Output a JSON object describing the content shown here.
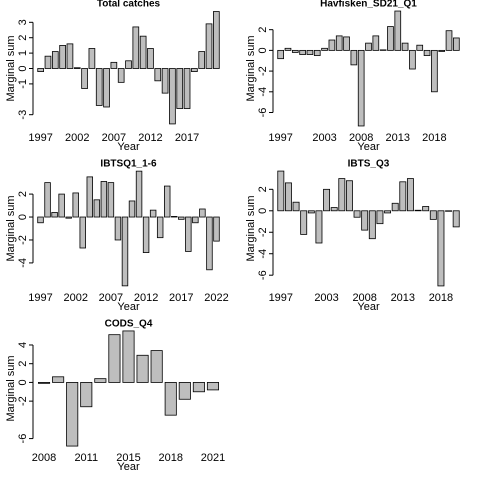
{
  "chart_data": [
    {
      "type": "bar",
      "title": "Total catches",
      "x_label": "Year",
      "y_label": "Marginal sum",
      "color": "#bebebe",
      "categories": [
        "1997",
        null,
        null,
        null,
        null,
        "2002",
        null,
        null,
        null,
        null,
        "2007",
        null,
        null,
        null,
        null,
        "2012",
        null,
        null,
        null,
        null,
        "2017",
        null,
        null,
        null,
        null
      ],
      "values": [
        -0.2,
        0.8,
        1.1,
        1.5,
        1.6,
        0.05,
        -1.3,
        1.3,
        -2.4,
        -2.5,
        0.4,
        -0.9,
        0.5,
        2.7,
        2.1,
        1.3,
        -0.8,
        -1.6,
        -3.6,
        -2.6,
        -2.6,
        -0.2,
        1.1,
        2.9,
        3.7
      ],
      "ylim": [
        -3.8,
        3.8
      ],
      "yticks": [
        -3,
        -1,
        0,
        1,
        2,
        3
      ]
    },
    {
      "type": "bar",
      "title": "Havfisken_SD21_Q1",
      "x_label": "Year",
      "y_label": "Marginal sum",
      "color": "#bebebe",
      "categories": [
        "1997",
        null,
        null,
        null,
        null,
        null,
        "2003",
        null,
        null,
        null,
        null,
        "2008",
        null,
        null,
        null,
        null,
        "2013",
        null,
        null,
        null,
        null,
        "2018",
        null,
        null,
        null
      ],
      "values": [
        -0.8,
        0.2,
        -0.2,
        -0.4,
        -0.4,
        -0.5,
        0.2,
        1.0,
        1.4,
        1.3,
        -1.4,
        -7.3,
        0.7,
        1.4,
        0.05,
        2.3,
        3.8,
        0.7,
        -1.8,
        0.5,
        -0.5,
        -4.0,
        -0.1,
        1.9,
        1.2
      ],
      "ylim": [
        -7.4,
        3.9
      ],
      "yticks": [
        -6,
        -4,
        -2,
        0,
        2
      ]
    },
    {
      "type": "bar",
      "title": "IBTSQ1_1-6",
      "x_label": "Year",
      "y_label": "Marginal sum",
      "color": "#bebebe",
      "categories": [
        "1997",
        null,
        null,
        null,
        null,
        "2002",
        null,
        null,
        null,
        null,
        "2007",
        null,
        null,
        null,
        null,
        "2012",
        null,
        null,
        null,
        null,
        "2017",
        null,
        null,
        null,
        null,
        "2022"
      ],
      "values": [
        -0.5,
        3.0,
        0.4,
        2.0,
        -0.1,
        2.1,
        -2.7,
        3.5,
        1.5,
        3.1,
        3.0,
        -2.0,
        -6.0,
        1.4,
        4.0,
        -3.1,
        0.6,
        -1.8,
        2.7,
        0.05,
        -0.2,
        -3.0,
        -0.5,
        0.7,
        -4.6,
        -2.1
      ],
      "ylim": [
        -6.1,
        4.1
      ],
      "yticks": [
        -4,
        -2,
        0,
        2
      ]
    },
    {
      "type": "bar",
      "title": "IBTS_Q3",
      "x_label": "Year",
      "y_label": "Marginal sum",
      "color": "#bebebe",
      "categories": [
        "1997",
        null,
        null,
        null,
        null,
        null,
        "2003",
        null,
        null,
        null,
        null,
        "2008",
        null,
        null,
        null,
        null,
        "2013",
        null,
        null,
        null,
        null,
        "2018",
        null,
        null
      ],
      "values": [
        3.7,
        2.6,
        0.8,
        -2.2,
        -0.2,
        -3.0,
        2.0,
        0.3,
        3.0,
        2.8,
        -0.6,
        -1.8,
        -2.6,
        -1.2,
        -0.2,
        0.7,
        2.7,
        3.0,
        0.05,
        0.4,
        -0.8,
        -7.0,
        0.0,
        -1.5
      ],
      "ylim": [
        -7.1,
        3.8
      ],
      "yticks": [
        -6,
        -4,
        -2,
        0,
        2
      ]
    },
    {
      "type": "bar",
      "title": "CODS_Q4",
      "x_label": "Year",
      "y_label": "Marginal sum",
      "color": "#bebebe",
      "categories": [
        "2008",
        null,
        null,
        "2011",
        null,
        null,
        "2015",
        null,
        null,
        "2018",
        null,
        null,
        "2021"
      ],
      "values": [
        -0.1,
        0.6,
        -6.8,
        -2.6,
        0.4,
        5.1,
        5.5,
        2.9,
        3.4,
        -3.5,
        -1.8,
        -1.0,
        -0.8
      ],
      "ylim": [
        -6.9,
        5.6
      ],
      "yticks": [
        -6,
        -2,
        0,
        2,
        4
      ]
    }
  ]
}
